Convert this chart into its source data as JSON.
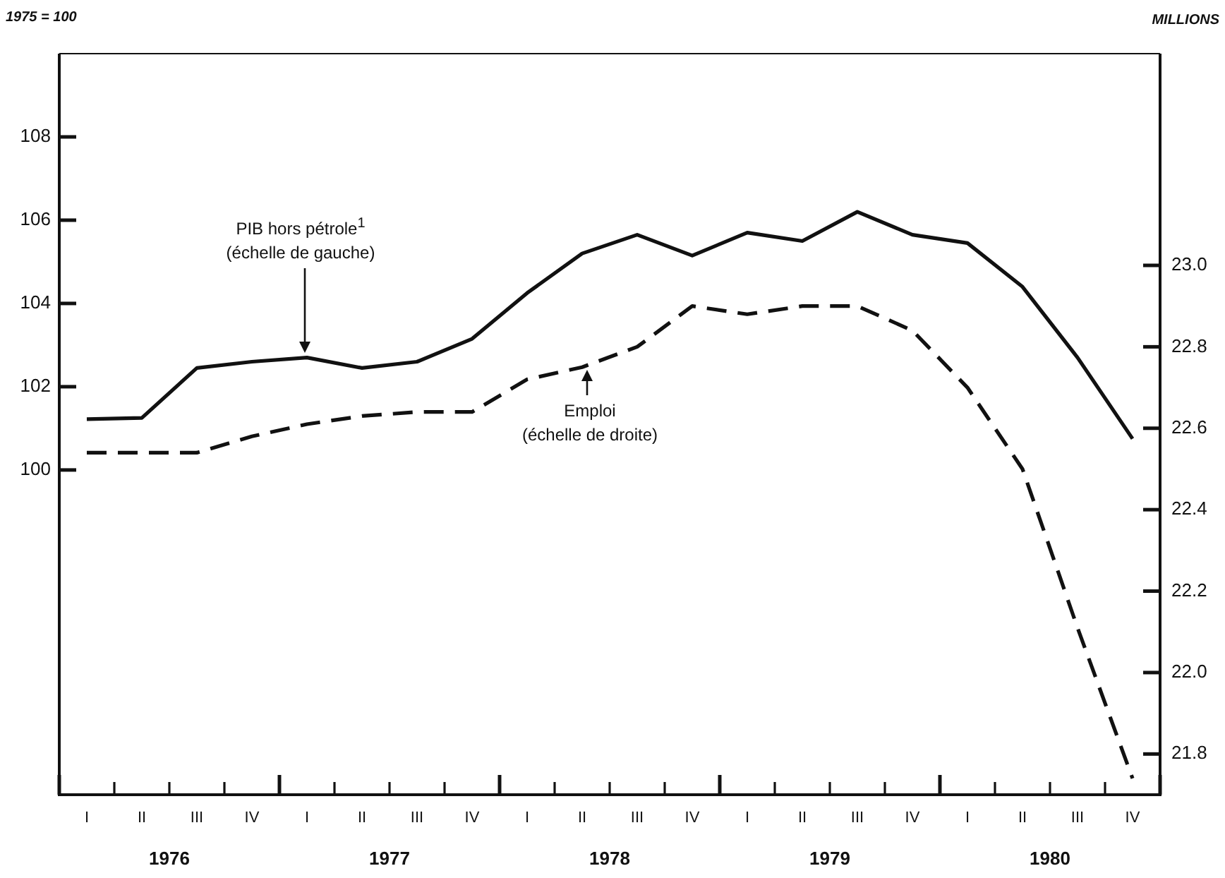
{
  "chart_data": {
    "type": "line",
    "ylabel": "1975 = 100",
    "y2label": "MILLIONS",
    "categories": [
      "I",
      "II",
      "III",
      "IV",
      "I",
      "II",
      "III",
      "IV",
      "I",
      "II",
      "III",
      "IV",
      "I",
      "II",
      "III",
      "IV",
      "I",
      "II",
      "III",
      "IV"
    ],
    "ylim": [
      92.2,
      110
    ],
    "yticks": [
      100,
      102,
      104,
      106,
      108
    ],
    "y2lim": [
      21.7,
      23.52
    ],
    "y2ticks": [
      21.8,
      {
        "value": 22,
        "label": "22.0"
      },
      22.2,
      22.4,
      22.6,
      22.8,
      {
        "value": 23,
        "label": "23.0"
      }
    ],
    "marker": "none",
    "legend": false,
    "series": [
      {
        "color": "#111111",
        "line_style": "solid",
        "values": [
          101.22,
          101.25,
          102.45,
          102.6,
          102.7,
          102.45,
          102.6,
          103.15,
          104.25,
          105.2,
          105.65,
          105.15,
          105.7,
          105.5,
          106.2,
          105.65,
          105.45,
          104.4,
          102.7,
          100.75
        ]
      },
      {
        "color": "#111111",
        "line_style": "dashed",
        "axis": "y2",
        "values": [
          22.54,
          22.54,
          22.54,
          22.58,
          22.61,
          22.63,
          22.64,
          22.64,
          22.72,
          22.75,
          22.8,
          22.9,
          22.88,
          22.9,
          22.9,
          22.84,
          22.7,
          22.5,
          22.11,
          21.74
        ]
      }
    ],
    "annotations": [
      "PIB hors pétrole$^{1}$",
      "(échelle de gauche)",
      "Emploi",
      "(échelle de droite)",
      "1976",
      "1977",
      "1978",
      "1979",
      "1980"
    ]
  }
}
